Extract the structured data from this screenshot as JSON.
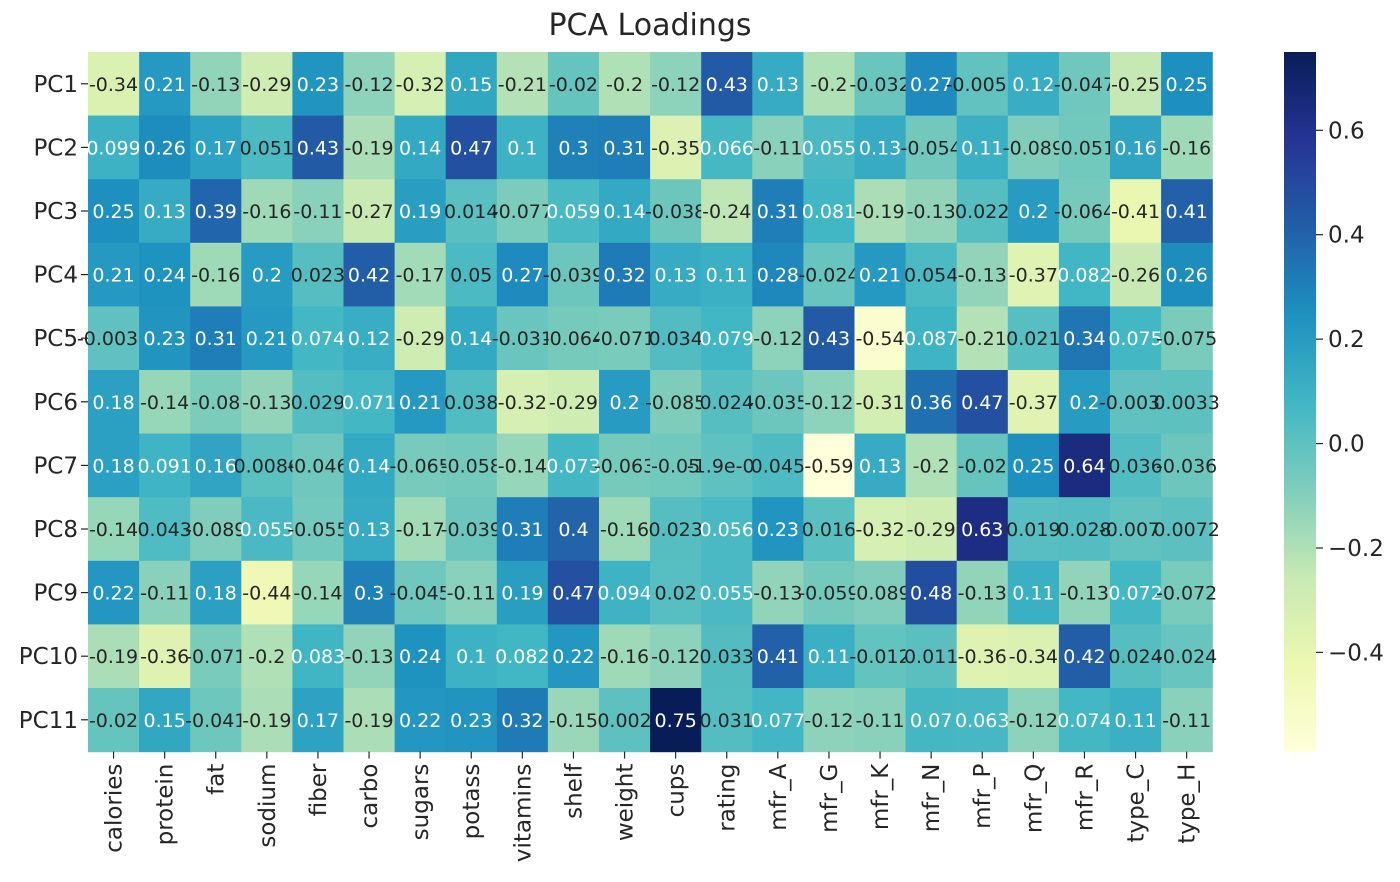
{
  "chart_data": {
    "type": "heatmap",
    "title": "PCA Loadings",
    "rows": [
      "PC1",
      "PC2",
      "PC3",
      "PC4",
      "PC5",
      "PC6",
      "PC7",
      "PC8",
      "PC9",
      "PC10",
      "PC11"
    ],
    "columns": [
      "calories",
      "protein",
      "fat",
      "sodium",
      "fiber",
      "carbo",
      "sugars",
      "potass",
      "vitamins",
      "shelf",
      "weight",
      "cups",
      "rating",
      "mfr_A",
      "mfr_G",
      "mfr_K",
      "mfr_N",
      "mfr_P",
      "mfr_Q",
      "mfr_R",
      "type_C",
      "type_H"
    ],
    "values": [
      [
        -0.34,
        0.21,
        -0.13,
        -0.29,
        0.23,
        -0.12,
        -0.32,
        0.15,
        -0.21,
        -0.02,
        -0.2,
        -0.12,
        0.43,
        0.13,
        -0.2,
        -0.032,
        0.27,
        -0.0057,
        0.12,
        -0.047,
        -0.25,
        0.25
      ],
      [
        0.099,
        0.26,
        0.17,
        0.051,
        0.43,
        -0.19,
        0.14,
        0.47,
        0.1,
        0.3,
        0.31,
        -0.35,
        0.066,
        -0.11,
        0.055,
        0.13,
        -0.054,
        0.11,
        -0.089,
        -0.051,
        0.16,
        -0.16
      ],
      [
        0.25,
        0.13,
        0.39,
        -0.16,
        -0.11,
        -0.27,
        0.19,
        0.014,
        -0.077,
        0.059,
        0.14,
        -0.038,
        -0.24,
        0.31,
        0.081,
        -0.19,
        -0.13,
        0.022,
        0.2,
        -0.064,
        -0.41,
        0.41
      ],
      [
        0.21,
        0.24,
        -0.16,
        0.2,
        0.023,
        0.42,
        -0.17,
        0.05,
        0.27,
        -0.039,
        0.32,
        0.13,
        0.11,
        0.28,
        -0.024,
        0.21,
        0.054,
        -0.13,
        -0.37,
        0.082,
        -0.26,
        0.26
      ],
      [
        -0.0034,
        0.23,
        0.31,
        0.21,
        0.074,
        0.12,
        -0.29,
        0.14,
        -0.031,
        -0.064,
        -0.071,
        0.034,
        0.079,
        -0.12,
        0.43,
        -0.54,
        0.087,
        -0.21,
        0.021,
        0.34,
        0.075,
        -0.075
      ],
      [
        0.18,
        -0.14,
        -0.08,
        -0.13,
        0.029,
        0.071,
        0.21,
        0.038,
        -0.32,
        -0.29,
        0.2,
        -0.085,
        0.024,
        -0.035,
        -0.12,
        -0.31,
        0.36,
        0.47,
        -0.37,
        0.2,
        -0.0033,
        0.0033
      ],
      [
        0.18,
        0.091,
        0.16,
        0.0086,
        -0.046,
        0.14,
        -0.065,
        -0.058,
        -0.14,
        0.073,
        -0.063,
        -0.05,
        "-1.9e-05",
        0.045,
        -0.59,
        0.13,
        -0.2,
        -0.02,
        0.25,
        0.64,
        0.036,
        -0.036
      ],
      [
        -0.14,
        0.043,
        -0.089,
        0.055,
        -0.055,
        0.13,
        -0.17,
        -0.039,
        0.31,
        0.4,
        -0.16,
        0.023,
        0.056,
        0.23,
        0.016,
        -0.32,
        -0.29,
        0.63,
        0.019,
        0.028,
        -0.0072,
        0.0072
      ],
      [
        0.22,
        -0.11,
        0.18,
        -0.44,
        -0.14,
        0.3,
        -0.045,
        -0.11,
        0.19,
        0.47,
        0.094,
        0.02,
        0.055,
        -0.13,
        -0.059,
        -0.089,
        0.48,
        -0.13,
        0.11,
        -0.13,
        0.072,
        -0.072
      ],
      [
        -0.19,
        -0.36,
        -0.071,
        -0.2,
        0.083,
        -0.13,
        0.24,
        0.1,
        0.082,
        0.22,
        -0.16,
        -0.12,
        0.033,
        0.41,
        0.11,
        -0.012,
        0.011,
        -0.36,
        -0.34,
        0.42,
        0.024,
        -0.024
      ],
      [
        -0.02,
        0.15,
        -0.041,
        -0.19,
        0.17,
        -0.19,
        0.22,
        0.23,
        0.32,
        -0.15,
        0.002,
        0.75,
        0.031,
        0.077,
        -0.12,
        -0.11,
        0.07,
        0.063,
        -0.12,
        0.074,
        0.11,
        -0.11
      ]
    ],
    "vmin": -0.59,
    "vmax": 0.75,
    "colormap": "YlGnBu",
    "colorbar_ticks": [
      0.6,
      0.4,
      0.2,
      0.0,
      -0.2,
      -0.4
    ],
    "colorbar_tick_labels": [
      "0.6",
      "0.4",
      "0.2",
      "0.0",
      "−0.2",
      "−0.4"
    ],
    "annotate_light_color": "#ffffff",
    "annotate_dark_color": "#262626"
  }
}
